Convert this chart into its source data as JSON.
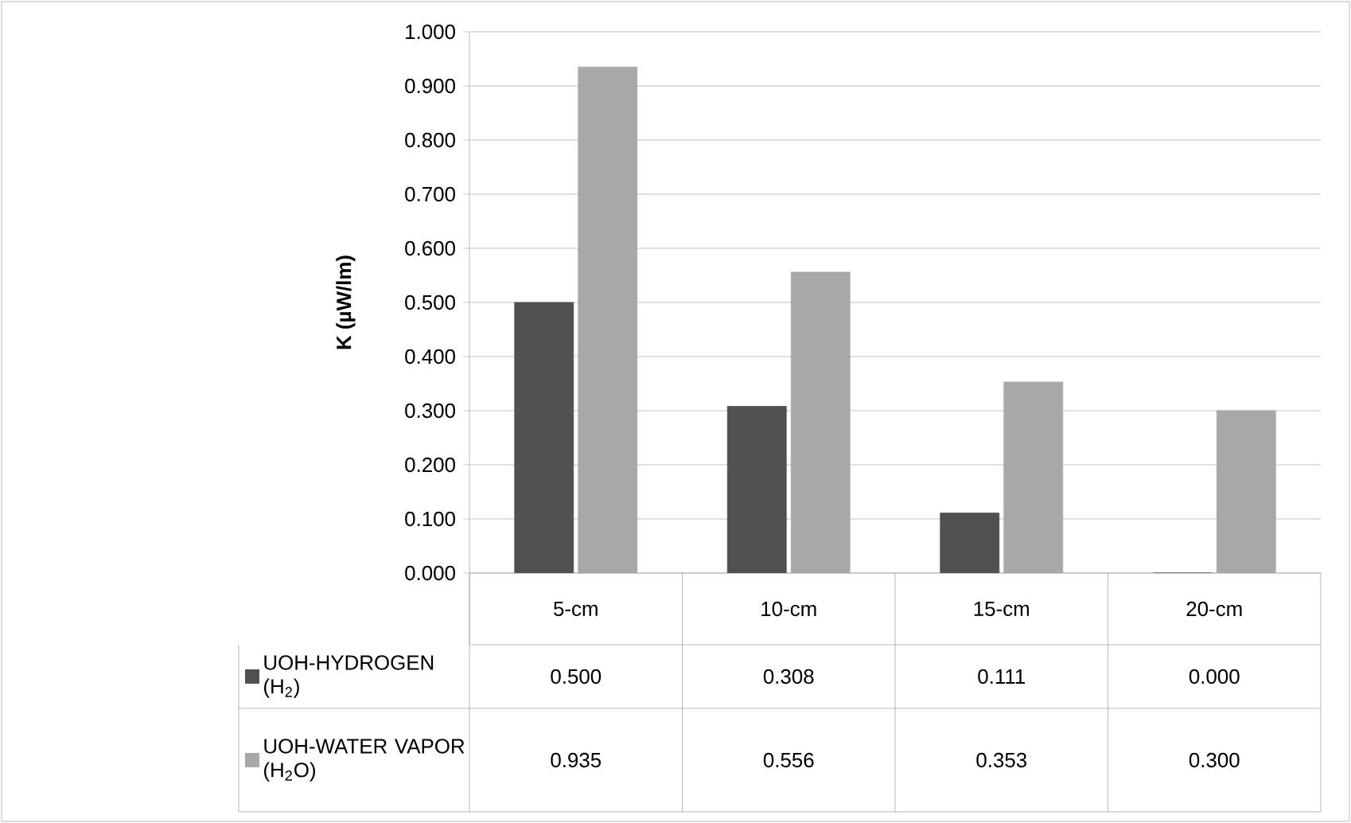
{
  "chart_data": {
    "type": "bar",
    "ylabel": "K (µW/lm)",
    "categories": [
      "5-cm",
      "10-cm",
      "15-cm",
      "20-cm"
    ],
    "series": [
      {
        "name": "UOH-HYDROGEN (H$_{2}$)",
        "color": "#505050",
        "values": [
          0.5,
          0.308,
          0.111,
          0.0
        ],
        "value_labels": [
          "0.500",
          "0.308",
          "0.111",
          "0.000"
        ]
      },
      {
        "name": "UOH-WATER VAPOR (H$_{2}$O)",
        "color": "#a8a8a8",
        "values": [
          0.935,
          0.556,
          0.353,
          0.3
        ],
        "value_labels": [
          "0.935",
          "0.556",
          "0.353",
          "0.300"
        ]
      }
    ],
    "ylim": [
      0,
      1
    ],
    "yticks": [
      {
        "value": 0,
        "label": "0.000"
      },
      {
        "value": 0.1,
        "label": "0.100"
      },
      {
        "value": 0.2,
        "label": "0.200"
      },
      {
        "value": 0.3,
        "label": "0.300"
      },
      {
        "value": 0.4,
        "label": "0.400"
      },
      {
        "value": 0.5,
        "label": "0.500"
      },
      {
        "value": 0.6,
        "label": "0.600"
      },
      {
        "value": 0.7,
        "label": "0.700"
      },
      {
        "value": 0.8,
        "label": "0.800"
      },
      {
        "value": 0.9,
        "label": "0.900"
      },
      {
        "value": 1,
        "label": "1.000"
      }
    ],
    "grid": "y",
    "legend": "left"
  }
}
